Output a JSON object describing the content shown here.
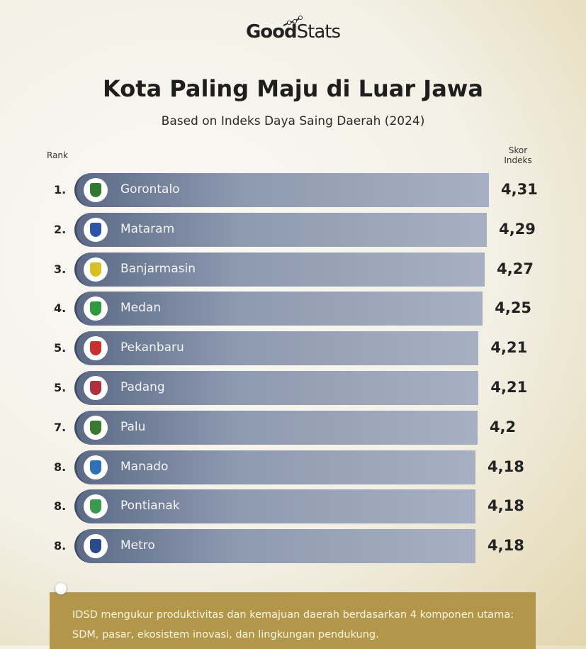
{
  "logo": {
    "bold": "Good",
    "light": "Stats"
  },
  "chart_data": {
    "type": "bar",
    "title": "Kota Paling Maju di Luar Jawa",
    "subtitle": "Based on Indeks Daya Saing Daerah (2024)",
    "rank_header": "Rank",
    "value_header": "Skor Indeks",
    "orientation": "horizontal",
    "rows": [
      {
        "rank": "1.",
        "city": "Gorontalo",
        "value": 4.31,
        "label": "4,31",
        "emblem_color": "#2f7a2f"
      },
      {
        "rank": "2.",
        "city": "Mataram",
        "value": 4.29,
        "label": "4,29",
        "emblem_color": "#2b56a8"
      },
      {
        "rank": "3.",
        "city": "Banjarmasin",
        "value": 4.27,
        "label": "4,27",
        "emblem_color": "#d8c020"
      },
      {
        "rank": "4.",
        "city": "Medan",
        "value": 4.25,
        "label": "4,25",
        "emblem_color": "#2e9a3c"
      },
      {
        "rank": "5.",
        "city": "Pekanbaru",
        "value": 4.21,
        "label": "4,21",
        "emblem_color": "#c83030"
      },
      {
        "rank": "5.",
        "city": "Padang",
        "value": 4.21,
        "label": "4,21",
        "emblem_color": "#b03040"
      },
      {
        "rank": "7.",
        "city": "Palu",
        "value": 4.2,
        "label": "4,2",
        "emblem_color": "#3a7a30"
      },
      {
        "rank": "8.",
        "city": "Manado",
        "value": 4.18,
        "label": "4,18",
        "emblem_color": "#3070b8"
      },
      {
        "rank": "8.",
        "city": "Pontianak",
        "value": 4.18,
        "label": "4,18",
        "emblem_color": "#3a9a50"
      },
      {
        "rank": "8.",
        "city": "Metro",
        "value": 4.18,
        "label": "4,18",
        "emblem_color": "#2a4a8a"
      }
    ]
  },
  "note": "IDSD mengukur produktivitas dan kemajuan daerah berdasarkan 4 komponen utama: SDM, pasar, ekosistem inovasi, dan lingkungan pendukung.",
  "colors": {
    "note_bg": "#b29649",
    "bar": "#8e9ab0"
  }
}
